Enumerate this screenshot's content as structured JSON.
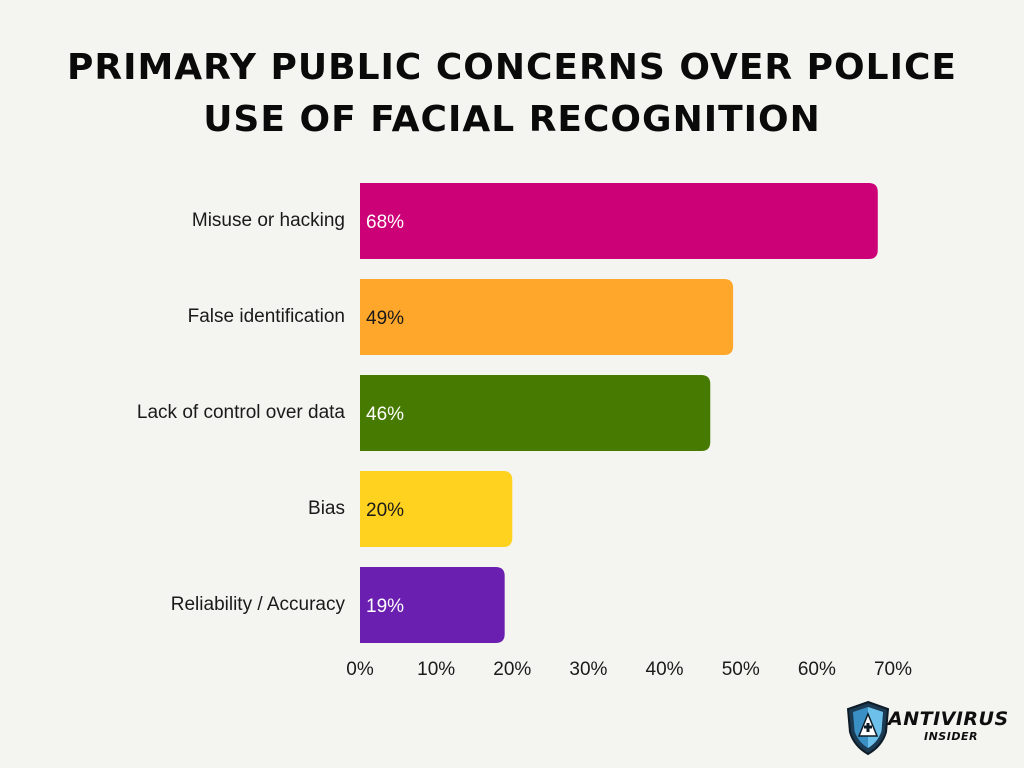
{
  "chart_data": {
    "type": "bar",
    "orientation": "horizontal",
    "title_lines": [
      "PRIMARY PUBLIC CONCERNS OVER POLICE",
      "USE OF FACIAL RECOGNITION"
    ],
    "categories": [
      "Misuse or hacking",
      "False identification",
      "Lack of control over data",
      "Bias",
      "Reliability / Accuracy"
    ],
    "values": [
      68,
      49,
      46,
      20,
      19
    ],
    "value_labels": [
      "68%",
      "49%",
      "46%",
      "20%",
      "19%"
    ],
    "colors": [
      "#cc0077",
      "#ffa72b",
      "#467a00",
      "#ffd21f",
      "#6a1fb0"
    ],
    "value_label_colors": [
      "#ffffff",
      "#1a1a1a",
      "#ffffff",
      "#1a1a1a",
      "#ffffff"
    ],
    "xlim": [
      0,
      70
    ],
    "x_ticks": [
      0,
      10,
      20,
      30,
      40,
      50,
      60,
      70
    ],
    "x_tick_labels": [
      "0%",
      "10%",
      "20%",
      "30%",
      "40%",
      "50%",
      "60%",
      "70%"
    ],
    "grid": false
  },
  "logo": {
    "main": "ANTIVIRUS",
    "sub": "INSIDER",
    "icon": "shield-icon"
  }
}
